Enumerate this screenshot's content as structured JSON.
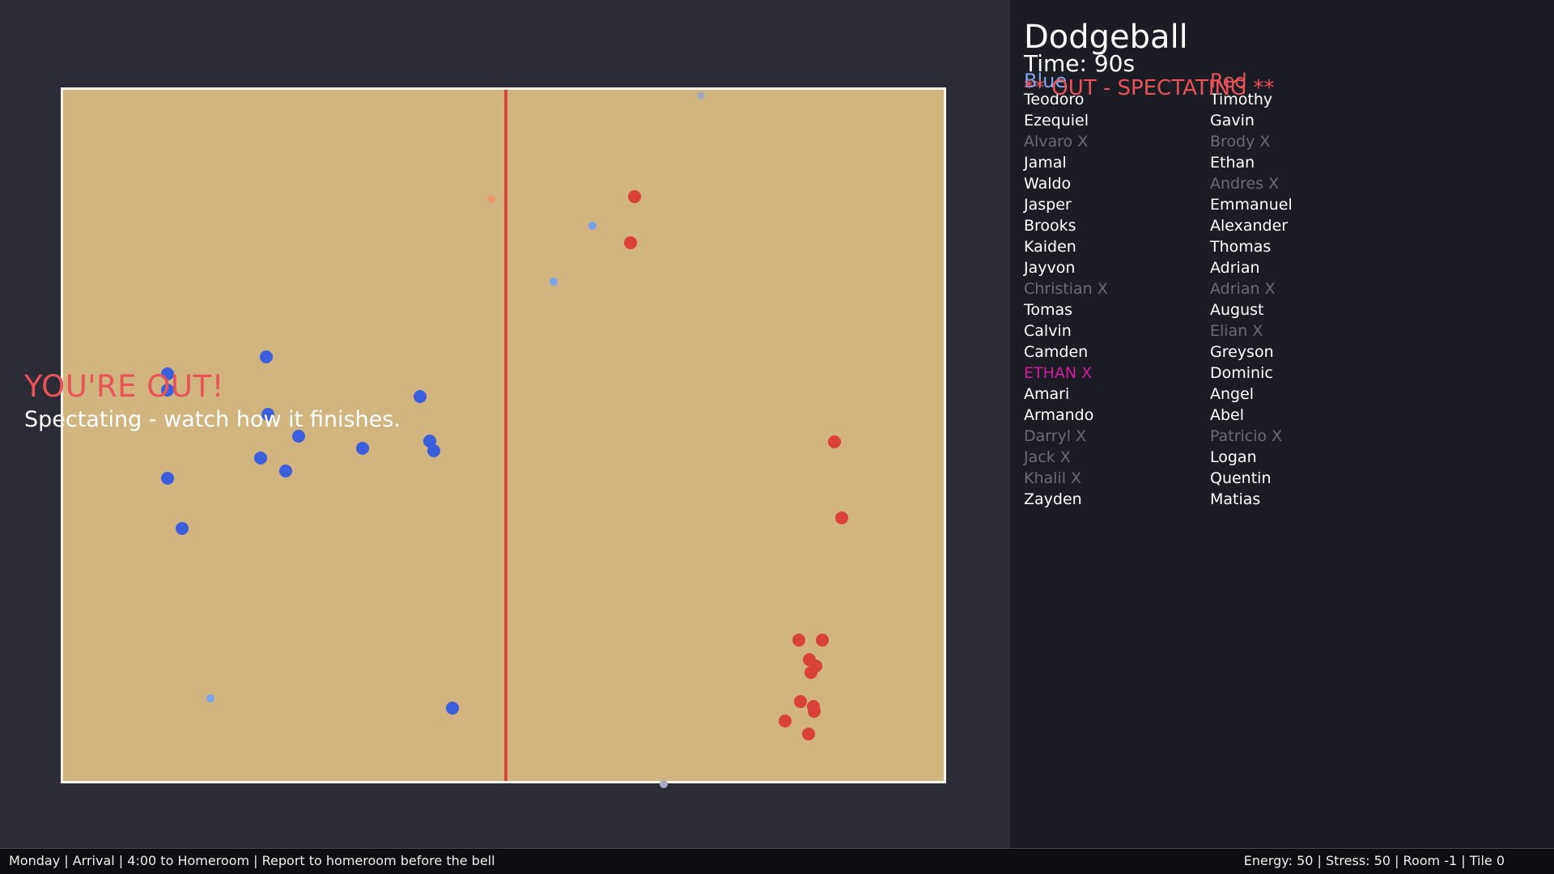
{
  "panel": {
    "title": "Dodgeball",
    "time": "Time: 90s",
    "blue_label": "Blue",
    "red_label": "Red",
    "out_status": "** OUT - SPECTATING **"
  },
  "out_message": {
    "title": "YOU'RE OUT!",
    "subtitle": "Spectating - watch how it finishes."
  },
  "blue_team": [
    {
      "name": "Teodoro",
      "state": "in"
    },
    {
      "name": "Ezequiel",
      "state": "in"
    },
    {
      "name": "Alvaro X",
      "state": "out"
    },
    {
      "name": "Jamal",
      "state": "in"
    },
    {
      "name": "Waldo",
      "state": "in"
    },
    {
      "name": "Jasper",
      "state": "in"
    },
    {
      "name": "Brooks",
      "state": "in"
    },
    {
      "name": "Kaiden",
      "state": "in"
    },
    {
      "name": "Jayvon",
      "state": "in"
    },
    {
      "name": "Christian X",
      "state": "out"
    },
    {
      "name": "Tomas",
      "state": "in"
    },
    {
      "name": "Calvin",
      "state": "in"
    },
    {
      "name": "Camden",
      "state": "in"
    },
    {
      "name": "ETHAN X",
      "state": "self"
    },
    {
      "name": "Amari",
      "state": "in"
    },
    {
      "name": "Armando",
      "state": "in"
    },
    {
      "name": "Darryl X",
      "state": "out"
    },
    {
      "name": "Jack X",
      "state": "out"
    },
    {
      "name": "Khalil X",
      "state": "out"
    },
    {
      "name": "Zayden",
      "state": "in"
    }
  ],
  "red_team": [
    {
      "name": "Timothy",
      "state": "in"
    },
    {
      "name": "Gavin",
      "state": "in"
    },
    {
      "name": "Brody X",
      "state": "out"
    },
    {
      "name": "Ethan",
      "state": "in"
    },
    {
      "name": "Andres X",
      "state": "out"
    },
    {
      "name": "Emmanuel",
      "state": "in"
    },
    {
      "name": "Alexander",
      "state": "in"
    },
    {
      "name": "Thomas",
      "state": "in"
    },
    {
      "name": "Adrian",
      "state": "in"
    },
    {
      "name": "Adrian X",
      "state": "out"
    },
    {
      "name": "August",
      "state": "in"
    },
    {
      "name": "Elian X",
      "state": "out"
    },
    {
      "name": "Greyson",
      "state": "in"
    },
    {
      "name": "Dominic",
      "state": "in"
    },
    {
      "name": "Angel",
      "state": "in"
    },
    {
      "name": "Abel",
      "state": "in"
    },
    {
      "name": "Patricio X",
      "state": "out"
    },
    {
      "name": "Logan",
      "state": "in"
    },
    {
      "name": "Quentin",
      "state": "in"
    },
    {
      "name": "Matias",
      "state": "in"
    }
  ],
  "status_bar": {
    "left": "Monday | Arrival | 4:00 to Homeroom | Report to homeroom before the bell",
    "right": "Energy: 50 | Stress: 50 | Room -1 | Tile 0"
  },
  "colors": {
    "court": "#d2b480",
    "center_line": "#d9443b",
    "blue_player": "#3b5fdc",
    "red_player": "#d9413a",
    "out_text": "#e8535a",
    "self_highlight": "#d01ea0"
  }
}
